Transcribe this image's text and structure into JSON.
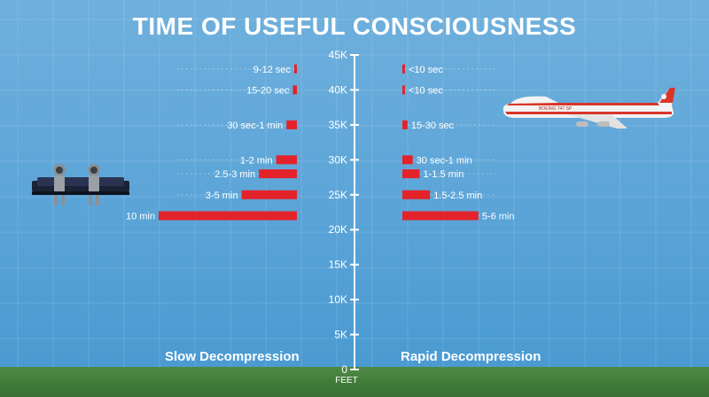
{
  "title": "TIME OF USEFUL CONSCIOUSNESS",
  "labels": {
    "slow": "Slow Decompression",
    "rapid": "Rapid Decompression",
    "unit": "FEET"
  },
  "colors": {
    "bar": "#e4222a",
    "axis": "#ffffff",
    "sky": "#5ea6d8",
    "ground": "#3f7a38"
  },
  "plane_livery": "BOEING 747 SP",
  "chart_data": {
    "type": "bar",
    "orientation": "horizontal",
    "title": "TIME OF USEFUL CONSCIOUSNESS",
    "ylabel": "FEET",
    "ylim": [
      0,
      45000
    ],
    "yticks": [
      {
        "value": 0,
        "label": "0"
      },
      {
        "value": 5000,
        "label": "5K"
      },
      {
        "value": 10000,
        "label": "10K"
      },
      {
        "value": 15000,
        "label": "15K"
      },
      {
        "value": 20000,
        "label": "20K"
      },
      {
        "value": 25000,
        "label": "25K"
      },
      {
        "value": 30000,
        "label": "30K"
      },
      {
        "value": 35000,
        "label": "35K"
      },
      {
        "value": 40000,
        "label": "40K"
      },
      {
        "value": 45000,
        "label": "45K"
      }
    ],
    "grid": true,
    "series": [
      {
        "name": "Slow Decompression",
        "altitudes": [
          43000,
          40000,
          35000,
          30000,
          28000,
          25000,
          22000
        ],
        "minutes": [
          0.175,
          0.29,
          0.75,
          1.5,
          2.75,
          4,
          10
        ],
        "labels": [
          "9-12 sec",
          "15-20 sec",
          "30 sec-1 min",
          "1-2 min",
          "2.5-3 min",
          "3-5 min",
          "10 min"
        ]
      },
      {
        "name": "Rapid Decompression",
        "altitudes": [
          43000,
          40000,
          35000,
          30000,
          28000,
          25000,
          22000
        ],
        "minutes": [
          0.08,
          0.08,
          0.375,
          0.75,
          1.25,
          2,
          5.5
        ],
        "labels": [
          "<10 sec",
          "<10 sec",
          "15-30 sec",
          "30 sec-1 min",
          "1-1.5 min",
          "1.5-2.5 min",
          "5-6 min"
        ]
      }
    ]
  }
}
